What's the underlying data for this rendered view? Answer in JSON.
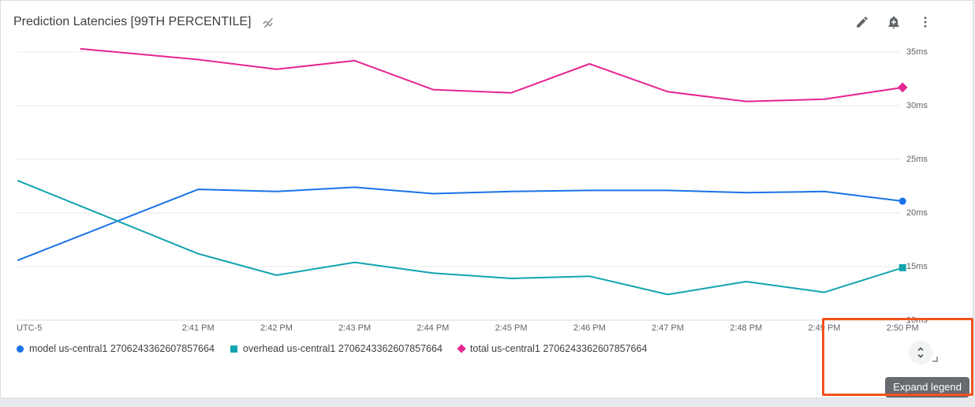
{
  "header": {
    "title": "Prediction Latencies [99TH PERCENTILE]",
    "title_icon": "trendline-slash-icon",
    "actions": [
      {
        "name": "edit",
        "icon": "edit-pencil-icon"
      },
      {
        "name": "add-alert",
        "icon": "add-alert-bell-icon"
      },
      {
        "name": "more-options",
        "icon": "vertical-dots-icon"
      }
    ]
  },
  "legend_controls": {
    "expand_icon": "unfold-more-icon",
    "tooltip": "Expand legend"
  },
  "colors": {
    "model": "#1A73E8",
    "overhead": "#12A4AF",
    "total": "#E52592",
    "grid": "#E8EAED",
    "axis_line": "#DADCE0",
    "annotation": "#F4511E"
  },
  "chart_data": {
    "type": "line",
    "title": "Prediction Latencies [99TH PERCENTILE]",
    "timezone_label": "UTC-5",
    "grid": true,
    "legend_position": "bottom",
    "xlim": [
      -1.32,
      10.27
    ],
    "x_tick_values": [
      1,
      2,
      3,
      4,
      5,
      6,
      7,
      8,
      9,
      10
    ],
    "x_tick_labels": [
      "2:41 PM",
      "2:42 PM",
      "2:43 PM",
      "2:44 PM",
      "2:45 PM",
      "2:46 PM",
      "2:47 PM",
      "2:48 PM",
      "2:49 PM",
      "2:50 PM"
    ],
    "ylim": [
      10,
      35.5
    ],
    "y_tick_values": [
      35,
      30,
      25,
      20,
      15,
      10
    ],
    "y_tick_labels": [
      "35ms",
      "30ms",
      "25ms",
      "20ms",
      "15ms",
      "10ms"
    ],
    "y_unit": "ms",
    "series": [
      {
        "name": "model",
        "label": "model us-central1 2706243362607857664",
        "color": "#1A73E8",
        "marker": "circle",
        "points": [
          [
            -1.3,
            15.6
          ],
          [
            1,
            22.2
          ],
          [
            2,
            22.0
          ],
          [
            3,
            22.4
          ],
          [
            4,
            21.8
          ],
          [
            5,
            22.0
          ],
          [
            6,
            22.1
          ],
          [
            7,
            22.1
          ],
          [
            8,
            21.9
          ],
          [
            9,
            22.0
          ],
          [
            10,
            21.1
          ]
        ]
      },
      {
        "name": "overhead",
        "label": "overhead us-central1 2706243362607857664",
        "color": "#12A4AF",
        "marker": "square",
        "points": [
          [
            -1.3,
            23.0
          ],
          [
            1,
            16.2
          ],
          [
            2,
            14.2
          ],
          [
            3,
            15.4
          ],
          [
            4,
            14.4
          ],
          [
            5,
            13.9
          ],
          [
            6,
            14.1
          ],
          [
            7,
            12.4
          ],
          [
            8,
            13.6
          ],
          [
            9,
            12.6
          ],
          [
            10,
            14.9
          ]
        ]
      },
      {
        "name": "total",
        "label": "total us-central1 2706243362607857664",
        "color": "#E52592",
        "marker": "diamond",
        "points": [
          [
            -0.5,
            35.3
          ],
          [
            1,
            34.3
          ],
          [
            2,
            33.4
          ],
          [
            3,
            34.2
          ],
          [
            4,
            31.5
          ],
          [
            5,
            31.2
          ],
          [
            6,
            33.9
          ],
          [
            7,
            31.3
          ],
          [
            8,
            30.4
          ],
          [
            9,
            30.6
          ],
          [
            10,
            31.7
          ]
        ]
      }
    ]
  }
}
